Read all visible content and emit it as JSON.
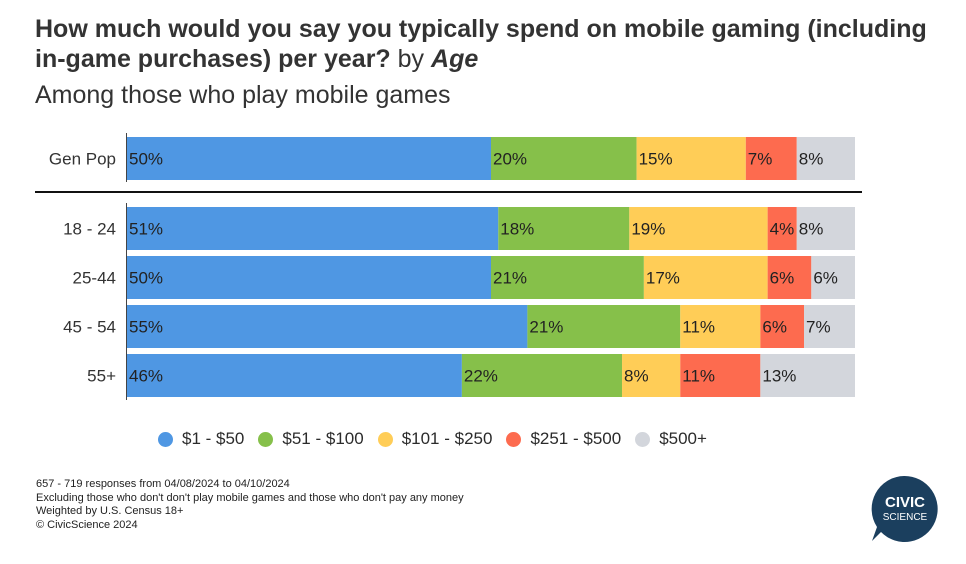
{
  "title": {
    "main": "How much would you say you typically spend on mobile gaming (including in-game purchases) per year?",
    "by": "by",
    "group": "Age",
    "subtitle": "Among those who play mobile games"
  },
  "chart_data": {
    "type": "bar",
    "orientation": "horizontal",
    "stacked": true,
    "normalized": true,
    "categories": [
      "Gen Pop",
      "18 - 24",
      "25-44",
      "45 - 54",
      "55+"
    ],
    "series": [
      {
        "name": "$1 - $50",
        "color": "#4f97e3",
        "values": [
          50,
          51,
          50,
          55,
          46
        ]
      },
      {
        "name": "$51 - $100",
        "color": "#86c04a",
        "values": [
          20,
          18,
          21,
          21,
          22
        ]
      },
      {
        "name": "$101 - $250",
        "color": "#ffcd57",
        "values": [
          15,
          19,
          17,
          11,
          8
        ]
      },
      {
        "name": "$251 - $500",
        "color": "#fd6b4f",
        "values": [
          7,
          4,
          6,
          6,
          11
        ]
      },
      {
        "name": "$500+",
        "color": "#d3d6dc",
        "values": [
          8,
          8,
          6,
          7,
          13
        ]
      }
    ],
    "legend_position": "bottom",
    "grid": false
  },
  "footer": {
    "lines": [
      "657 - 719 responses from 04/08/2024 to 04/10/2024",
      "Excluding those who don't don't play mobile games and those who don't pay any money",
      "Weighted by U.S. Census 18+",
      "© CivicScience 2024"
    ]
  },
  "logo": {
    "line1": "CIVIC",
    "line2": "SCIENCE",
    "color": "#1b3f5e"
  }
}
